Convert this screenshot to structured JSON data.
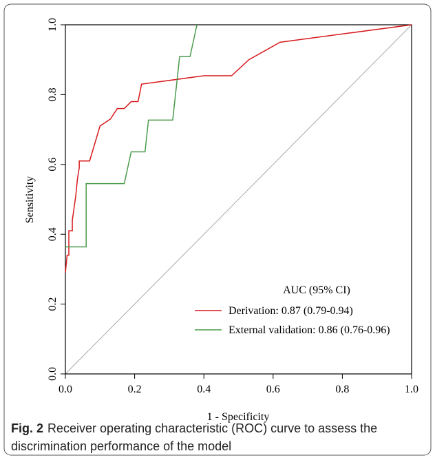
{
  "chart_data": {
    "type": "line",
    "xlabel": "1 - Specificity",
    "ylabel": "Sensitivity",
    "xlim": [
      0,
      1
    ],
    "ylim": [
      0,
      1
    ],
    "xticks": [
      {
        "value": 0,
        "label": "0.0"
      },
      0.2,
      0.4,
      0.6,
      0.8,
      {
        "value": 1,
        "label": "1.0"
      }
    ],
    "yticks": [
      {
        "value": 0,
        "label": "0.0"
      },
      0.2,
      0.4,
      0.6,
      0.8,
      {
        "value": 1,
        "label": "1.0"
      }
    ],
    "legend_title": "AUC (95% CI)",
    "series": [
      {
        "name": "Derivation: 0.87 (0.79-0.94)",
        "color": "#d7191c",
        "x": [
          0,
          0.005,
          0.01,
          0.01,
          0.02,
          0.02,
          0.03,
          0.035,
          0.04,
          0.04,
          0.07,
          0.1,
          0.13,
          0.15,
          0.17,
          0.19,
          0.21,
          0.22,
          0.4,
          0.48,
          0.53,
          0.62,
          1.0
        ],
        "values": [
          0.29,
          0.34,
          0.34,
          0.41,
          0.41,
          0.44,
          0.51,
          0.56,
          0.59,
          0.61,
          0.61,
          0.71,
          0.73,
          0.76,
          0.76,
          0.78,
          0.78,
          0.83,
          0.854,
          0.854,
          0.9,
          0.95,
          1.0
        ]
      },
      {
        "name": "External validation: 0.86 (0.76-0.96)",
        "color": "#4a9a4a",
        "x": [
          0,
          0.06,
          0.06,
          0.17,
          0.19,
          0.23,
          0.24,
          0.31,
          0.33,
          0.36,
          0.38
        ],
        "values": [
          0.364,
          0.364,
          0.545,
          0.545,
          0.636,
          0.636,
          0.727,
          0.727,
          0.909,
          0.909,
          1.0
        ]
      }
    ]
  },
  "caption": {
    "label": "Fig. 2",
    "text": "Receiver operating characteristic (ROC) curve to assess the discrimination performance of the model"
  }
}
